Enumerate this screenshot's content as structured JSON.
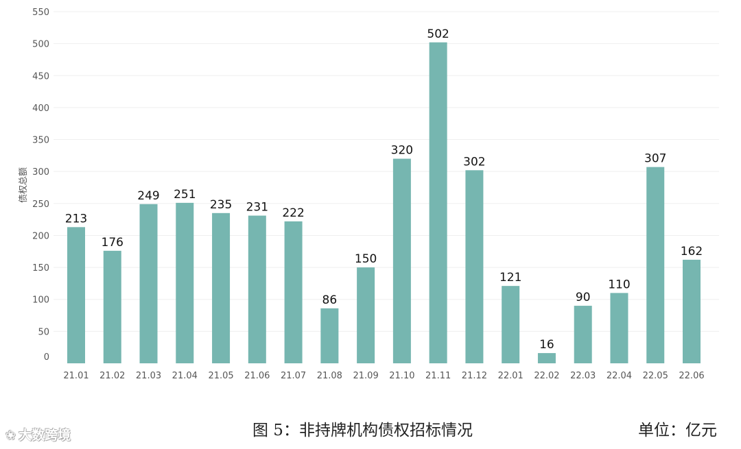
{
  "chart_data": {
    "type": "bar",
    "categories": [
      "21.01",
      "21.02",
      "21.03",
      "21.04",
      "21.05",
      "21.06",
      "21.07",
      "21.08",
      "21.09",
      "21.10",
      "21.11",
      "21.12",
      "22.01",
      "22.02",
      "22.03",
      "22.04",
      "22.05",
      "22.06"
    ],
    "values": [
      213,
      176,
      249,
      251,
      235,
      231,
      222,
      86,
      150,
      320,
      502,
      302,
      121,
      16,
      90,
      110,
      307,
      162
    ],
    "ylabel": "债权总额",
    "ylim": [
      0,
      550
    ],
    "yticks": [
      0,
      50,
      100,
      150,
      200,
      250,
      300,
      350,
      400,
      450,
      500,
      550
    ],
    "bar_color": "#76b6b0",
    "grid": true
  },
  "caption": "图 5：非持牌机构债权招标情况",
  "unit": "单位：亿元",
  "watermark": "大数跨境"
}
